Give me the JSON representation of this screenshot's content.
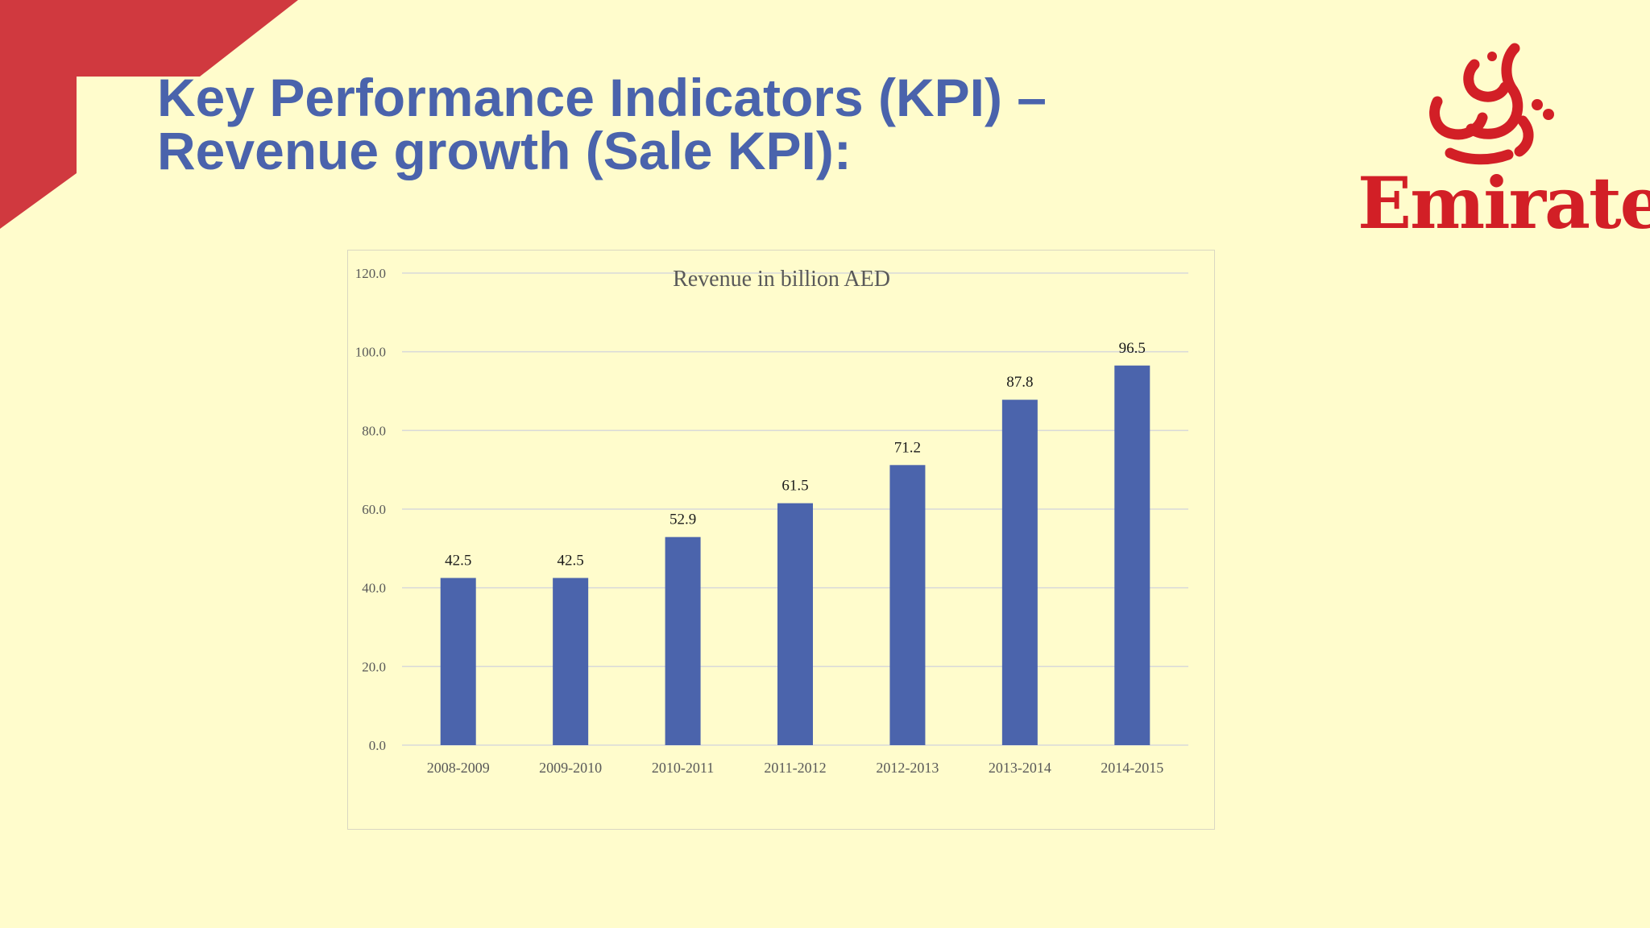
{
  "slide": {
    "title_line1": "Key Performance Indicators (KPI) –",
    "title_line2": "Revenue growth (Sale KPI):"
  },
  "logo": {
    "word": "Emirates",
    "arabic": "طيران الإمارات"
  },
  "colors": {
    "background": "#FFFCCC",
    "accent_red": "#D0393F",
    "title_blue": "#4A63AC",
    "bar": "#4B64AC",
    "logo_red": "#D21F26"
  },
  "chart_data": {
    "type": "bar",
    "title": "Revenue in billion AED",
    "categories": [
      "2008-2009",
      "2009-2010",
      "2010-2011",
      "2011-2012",
      "2012-2013",
      "2013-2014",
      "2014-2015"
    ],
    "values": [
      42.5,
      42.5,
      52.9,
      61.5,
      71.2,
      87.8,
      96.5
    ],
    "value_labels": [
      "42.5",
      "42.5",
      "52.9",
      "61.5",
      "71.2",
      "87.8",
      "96.5"
    ],
    "ylim": [
      0,
      120
    ],
    "yticks": [
      "0.0",
      "20.0",
      "40.0",
      "60.0",
      "80.0",
      "100.0",
      "120.0"
    ],
    "xlabel": "",
    "ylabel": "",
    "grid": true,
    "legend": false
  }
}
